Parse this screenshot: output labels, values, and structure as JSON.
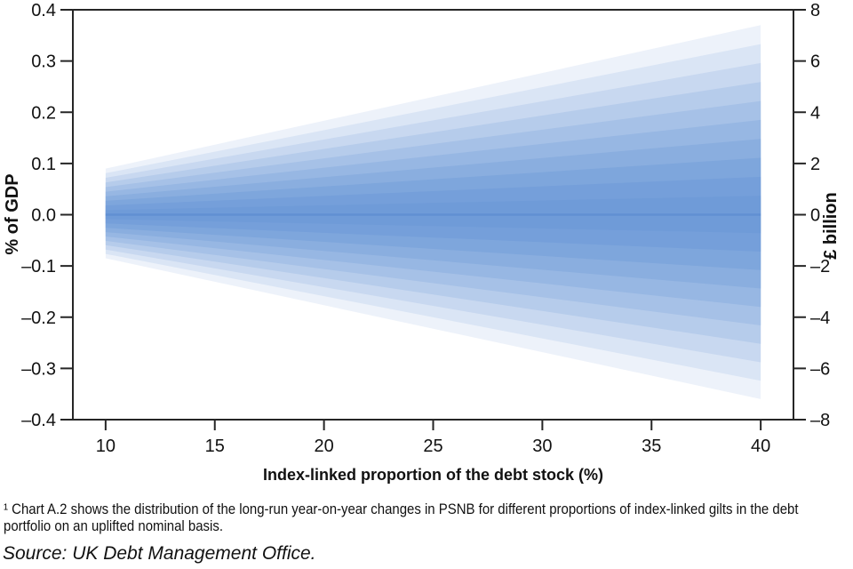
{
  "chart_data": {
    "type": "area",
    "subtype": "fan-chart",
    "title": "",
    "xlabel": "Index-linked proportion of the debt stock (%)",
    "ylabel_left": "% of GDP",
    "ylabel_right": "£ billion",
    "xlim": [
      8.5,
      41.5
    ],
    "ylim_left": [
      -0.4,
      0.4
    ],
    "ylim_right": [
      -8,
      8
    ],
    "grid": false,
    "legend": false,
    "x_ticks": [
      10,
      15,
      20,
      25,
      30,
      35,
      40
    ],
    "x_tick_labels": [
      "10",
      "15",
      "20",
      "25",
      "30",
      "35",
      "40"
    ],
    "y_ticks_left": [
      0.4,
      0.3,
      0.2,
      0.1,
      0.0,
      -0.1,
      -0.2,
      -0.3,
      -0.4
    ],
    "y_tick_labels_left": [
      "0.4",
      "0.3",
      "0.2",
      "0.1",
      "0.0",
      "–0.1",
      "–0.2",
      "–0.3",
      "–0.4"
    ],
    "y_ticks_right": [
      8,
      6,
      4,
      2,
      0,
      -2,
      -4,
      -6,
      -8
    ],
    "y_tick_labels_right": [
      "8",
      "6",
      "4",
      "2",
      "0",
      "–2",
      "–4",
      "–6",
      "–8"
    ],
    "fan": {
      "description": "Distribution of long-run year-on-year changes in PSNB (% of GDP, left; £ billion, right) by index-linked proportion of the debt stock",
      "x_start": 10,
      "x_end": 40,
      "median": 0.0,
      "upper_at_start": 0.09,
      "upper_at_end": 0.37,
      "lower_at_start": -0.085,
      "lower_at_end": -0.36,
      "bands_per_side": 10,
      "band_colors_inner_to_outer": [
        "#6f9bd8",
        "#759fda",
        "#7ea6dc",
        "#8aaedf",
        "#97b7e3",
        "#a6c1e7",
        "#b6cceb",
        "#c8d8f0",
        "#dae5f5",
        "#edf2fa"
      ],
      "median_color": "#6190d2"
    },
    "axis_color": "#262626",
    "text_color": "#111111"
  },
  "footnote": {
    "lines": [
      "¹ Chart A.2 shows the distribution of the long-run year-on-year changes in PSNB for different proportions of index-linked gilts in the debt",
      "portfolio on an uplifted nominal basis."
    ]
  },
  "source_line": "Source: UK Debt Management Office."
}
